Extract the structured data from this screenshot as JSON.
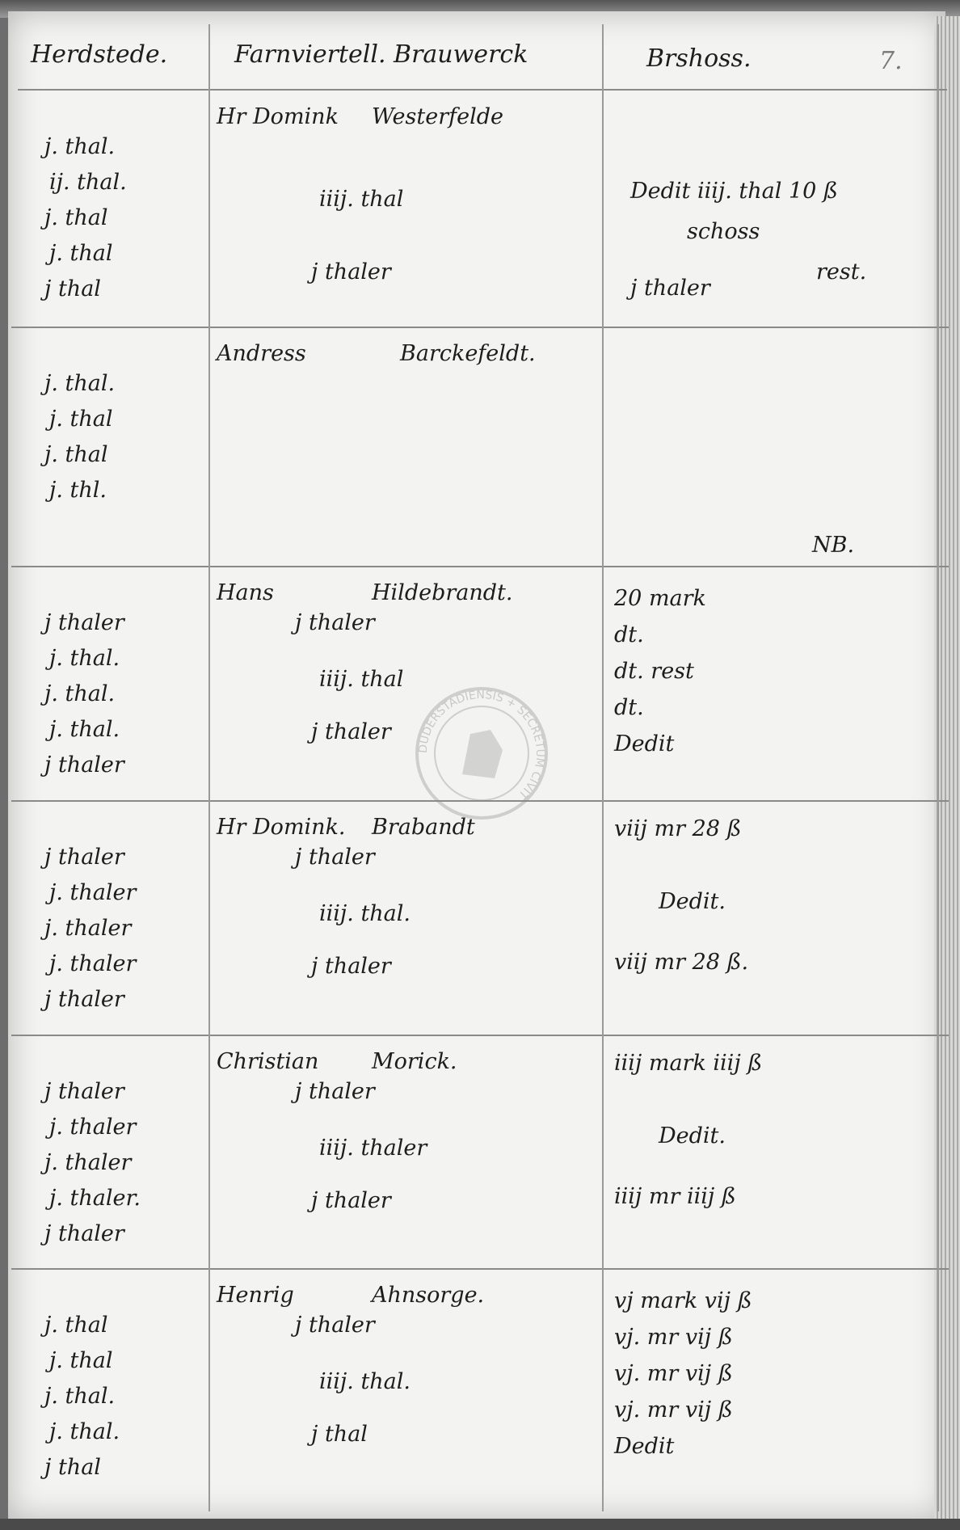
{
  "header": {
    "col1": "Herdstede.",
    "col2": "Farnviertell. Brauwerck",
    "col3": "Brshoss.",
    "page_number": "7."
  },
  "rows": [
    {
      "left": [
        "j. thal.",
        "ij. thal.",
        "j. thal",
        "j. thal",
        "j thal"
      ],
      "name": [
        "Hr Domink",
        "Westerfelde"
      ],
      "middle": [
        "iiij. thal",
        "j thaler"
      ],
      "right": [
        "Dedit iiij. thal 10 ß",
        "schoss",
        "rest.",
        "j thaler"
      ]
    },
    {
      "left": [
        "j. thal.",
        "j. thal",
        "j. thal",
        "j. thl."
      ],
      "name": [
        "Andress",
        "Barckefeldt."
      ],
      "middle": [],
      "right": [
        "NB."
      ]
    },
    {
      "left": [
        "j thaler",
        "j. thal.",
        "j. thal.",
        "j. thal.",
        "j thaler"
      ],
      "name": [
        "Hans",
        "Hildebrandt."
      ],
      "middle": [
        "j thaler",
        "iiij. thal",
        "j thaler"
      ],
      "right": [
        "20 mark",
        "dt.",
        "dt.   rest",
        "dt.",
        "Dedit"
      ]
    },
    {
      "left": [
        "j thaler",
        "j. thaler",
        "j. thaler",
        "j. thaler",
        "j thaler"
      ],
      "name": [
        "Hr Domink.",
        "Brabandt"
      ],
      "middle": [
        "j thaler",
        "iiij. thal.",
        "j thaler"
      ],
      "right": [
        "viij mr 28 ß",
        "Dedit.",
        "viij mr 28 ß."
      ]
    },
    {
      "left": [
        "j thaler",
        "j. thaler",
        "j. thaler",
        "j. thaler.",
        "j thaler"
      ],
      "name": [
        "Christian",
        "Morick."
      ],
      "middle": [
        "j thaler",
        "iiij. thaler",
        "j thaler"
      ],
      "right": [
        "iiij mark iiij ß",
        "Dedit.",
        "iiij mr iiij ß"
      ]
    },
    {
      "left": [
        "j. thal",
        "j. thal",
        "j. thal.",
        "j. thal.",
        "j thal"
      ],
      "name": [
        "Henrig",
        "Ahnsorge."
      ],
      "middle": [
        "j thaler",
        "iiij. thal.",
        "j thal"
      ],
      "right": [
        "vj mark vij ß",
        "vj. mr vij ß",
        "vj. mr vij ß",
        "vj. mr vij ß",
        "Dedit"
      ]
    }
  ],
  "seal": {
    "text": "DUDERSTADIENSIS + SECRETUM CIVIT",
    "color": "#8a8a8a"
  }
}
